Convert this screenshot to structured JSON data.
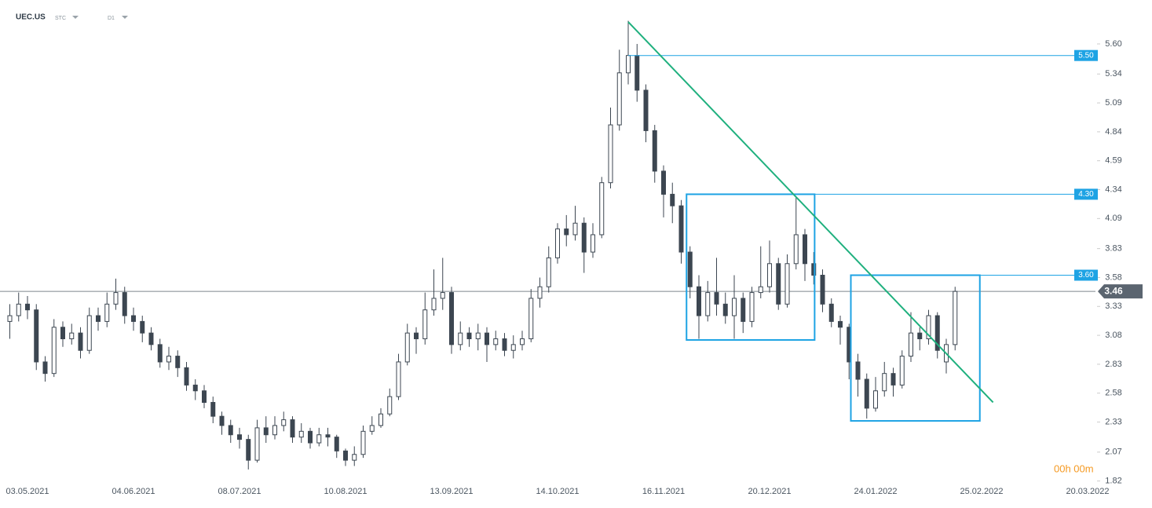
{
  "chart_data": {
    "type": "candlestick",
    "symbol": "UEC.US",
    "source": "STC",
    "interval": "D1",
    "timer": "00h 00m",
    "categories": [
      null,
      null,
      "03.05.2021",
      null,
      null,
      null,
      null,
      null,
      null,
      null,
      null,
      null,
      null,
      null,
      "04.06.2021",
      null,
      null,
      null,
      null,
      null,
      null,
      null,
      null,
      null,
      null,
      null,
      "08.07.2021",
      null,
      null,
      null,
      null,
      null,
      null,
      null,
      null,
      null,
      null,
      null,
      "10.08.2021",
      null,
      null,
      null,
      null,
      null,
      null,
      null,
      null,
      null,
      null,
      null,
      "13.09.2021",
      null,
      null,
      null,
      null,
      null,
      null,
      null,
      null,
      null,
      null,
      null,
      "14.10.2021",
      null,
      null,
      null,
      null,
      null,
      null,
      null,
      null,
      null,
      null,
      null,
      "16.11.2021",
      null,
      null,
      null,
      null,
      null,
      null,
      null,
      null,
      null,
      null,
      null,
      "20.12.2021",
      null,
      null,
      null,
      null,
      null,
      null,
      null,
      null,
      null,
      null,
      null,
      "24.01.2022",
      null,
      null,
      null,
      null,
      null,
      null,
      null,
      null,
      null,
      null,
      null,
      "25.02.2022",
      null,
      null,
      null,
      null,
      null,
      null,
      null,
      null,
      null,
      null,
      null,
      "20.03.2022"
    ],
    "open": [
      3.2,
      3.25,
      3.35,
      3.3,
      2.85,
      2.75,
      3.15,
      3.05,
      3.1,
      2.95,
      3.25,
      3.2,
      3.35,
      3.45,
      3.25,
      3.2,
      3.1,
      3.0,
      2.85,
      2.9,
      2.8,
      2.65,
      2.6,
      2.5,
      2.38,
      2.3,
      2.22,
      2.18,
      2.0,
      2.28,
      2.22,
      2.3,
      2.35,
      2.2,
      2.25,
      2.15,
      2.22,
      2.2,
      2.08,
      2.0,
      2.05,
      2.25,
      2.3,
      2.4,
      2.55,
      2.85,
      3.1,
      3.05,
      3.3,
      3.4,
      3.45,
      3.0,
      3.1,
      3.05,
      3.1,
      3.0,
      3.05,
      2.95,
      3.0,
      3.05,
      3.4,
      3.5,
      3.75,
      4.0,
      3.95,
      4.05,
      3.8,
      3.95,
      4.4,
      4.9,
      5.35,
      5.5,
      5.2,
      4.85,
      4.5,
      4.3,
      4.2,
      3.8,
      3.5,
      3.25,
      3.45,
      3.35,
      3.25,
      3.4,
      3.2,
      3.45,
      3.5,
      3.7,
      3.35,
      3.7,
      3.95,
      3.7,
      3.6,
      3.35,
      3.2,
      3.15,
      2.85,
      2.7,
      2.45,
      2.6,
      2.75,
      2.65,
      2.9,
      3.1,
      3.05,
      3.25,
      2.85,
      3.0,
      null,
      null,
      null,
      null,
      null,
      null,
      null,
      null,
      null,
      null,
      null,
      null,
      null,
      null,
      null
    ],
    "high": [
      3.35,
      3.45,
      3.42,
      3.35,
      2.9,
      3.22,
      3.2,
      3.18,
      3.15,
      3.32,
      3.32,
      3.45,
      3.57,
      3.5,
      3.32,
      3.25,
      3.15,
      3.05,
      2.98,
      2.95,
      2.85,
      2.7,
      2.65,
      2.55,
      2.42,
      2.35,
      2.28,
      2.22,
      2.35,
      2.38,
      2.38,
      2.42,
      2.38,
      2.32,
      2.28,
      2.28,
      2.28,
      2.22,
      2.1,
      2.12,
      2.3,
      2.38,
      2.45,
      2.62,
      2.92,
      3.18,
      3.15,
      3.45,
      3.65,
      3.75,
      3.5,
      3.2,
      3.15,
      3.18,
      3.15,
      3.12,
      3.1,
      3.08,
      3.12,
      3.48,
      3.58,
      3.85,
      4.05,
      4.12,
      4.2,
      4.1,
      4.05,
      4.45,
      5.05,
      5.55,
      5.8,
      5.6,
      5.25,
      4.9,
      4.55,
      4.4,
      4.25,
      3.85,
      3.6,
      3.55,
      3.75,
      3.45,
      3.6,
      3.45,
      3.5,
      3.85,
      3.9,
      3.75,
      3.78,
      4.28,
      4.0,
      3.8,
      3.65,
      3.4,
      3.25,
      3.18,
      2.92,
      2.75,
      2.72,
      2.85,
      2.8,
      2.95,
      3.28,
      3.15,
      3.3,
      3.28,
      3.05,
      3.5,
      null,
      null,
      null,
      null,
      null,
      null,
      null,
      null,
      null,
      null,
      null,
      null,
      null,
      null,
      null
    ],
    "low": [
      3.05,
      3.2,
      3.22,
      2.78,
      2.68,
      2.72,
      2.98,
      3.0,
      2.88,
      2.92,
      3.12,
      3.15,
      3.3,
      3.18,
      3.12,
      3.02,
      2.95,
      2.8,
      2.78,
      2.72,
      2.6,
      2.52,
      2.45,
      2.32,
      2.22,
      2.15,
      2.1,
      1.92,
      1.98,
      2.15,
      2.18,
      2.25,
      2.15,
      2.15,
      2.1,
      2.12,
      2.12,
      2.02,
      1.95,
      1.95,
      2.02,
      2.22,
      2.28,
      2.38,
      2.52,
      2.82,
      2.92,
      3.0,
      3.25,
      3.3,
      2.92,
      2.95,
      2.98,
      2.95,
      2.85,
      2.95,
      2.9,
      2.88,
      2.95,
      3.02,
      3.32,
      3.45,
      3.7,
      3.85,
      3.9,
      3.62,
      3.75,
      3.92,
      4.35,
      4.85,
      5.25,
      5.1,
      4.75,
      4.4,
      4.1,
      4.05,
      3.7,
      3.4,
      3.05,
      3.2,
      3.25,
      3.18,
      3.05,
      3.1,
      3.15,
      3.4,
      3.45,
      3.3,
      3.32,
      3.65,
      3.55,
      3.52,
      3.28,
      3.15,
      3.0,
      2.7,
      2.55,
      2.36,
      2.42,
      2.55,
      2.55,
      2.62,
      2.85,
      2.95,
      3.0,
      2.88,
      2.75,
      2.95,
      null,
      null,
      null,
      null,
      null,
      null,
      null,
      null,
      null,
      null,
      null,
      null,
      null,
      null,
      null
    ],
    "close": [
      3.25,
      3.35,
      3.3,
      2.85,
      2.75,
      3.15,
      3.05,
      3.1,
      2.95,
      3.25,
      3.2,
      3.35,
      3.45,
      3.25,
      3.2,
      3.1,
      3.0,
      2.85,
      2.9,
      2.8,
      2.65,
      2.6,
      2.5,
      2.38,
      2.3,
      2.22,
      2.18,
      2.0,
      2.28,
      2.22,
      2.3,
      2.35,
      2.2,
      2.25,
      2.15,
      2.22,
      2.2,
      2.08,
      2.0,
      2.05,
      2.25,
      2.3,
      2.4,
      2.55,
      2.85,
      3.1,
      3.05,
      3.3,
      3.4,
      3.45,
      3.0,
      3.1,
      3.05,
      3.1,
      3.0,
      3.05,
      2.95,
      3.0,
      3.05,
      3.4,
      3.5,
      3.75,
      4.0,
      3.95,
      4.05,
      3.8,
      3.95,
      4.4,
      4.9,
      5.35,
      5.5,
      5.2,
      4.85,
      4.5,
      4.3,
      4.2,
      3.8,
      3.5,
      3.25,
      3.45,
      3.35,
      3.25,
      3.4,
      3.2,
      3.45,
      3.5,
      3.7,
      3.35,
      3.7,
      3.95,
      3.7,
      3.6,
      3.35,
      3.2,
      3.15,
      2.85,
      2.7,
      2.45,
      2.6,
      2.75,
      2.65,
      2.9,
      3.1,
      3.05,
      3.25,
      2.95,
      3.0,
      3.46,
      null,
      null,
      null,
      null,
      null,
      null,
      null,
      null,
      null,
      null,
      null,
      null,
      null,
      null,
      null
    ],
    "up_color": "#ffffff",
    "down_color": "#3c4651",
    "outline_color": "#3c4651",
    "ylim": [
      1.77,
      5.98
    ],
    "yticks": [
      {
        "value": 5.6,
        "label": "5.60"
      },
      {
        "value": 5.34,
        "label": "5.34"
      },
      {
        "value": 5.09,
        "label": "5.09"
      },
      {
        "value": 4.84,
        "label": "4.84"
      },
      {
        "value": 4.59,
        "label": "4.59"
      },
      {
        "value": 4.34,
        "label": "4.34"
      },
      {
        "value": 4.09,
        "label": "4.09"
      },
      {
        "value": 3.83,
        "label": "3.83"
      },
      {
        "value": 3.58,
        "label": "3.58"
      },
      {
        "value": 3.33,
        "label": "3.33"
      },
      {
        "value": 3.08,
        "label": "3.08"
      },
      {
        "value": 2.83,
        "label": "2.83"
      },
      {
        "value": 2.58,
        "label": "2.58"
      },
      {
        "value": 2.33,
        "label": "2.33"
      },
      {
        "value": 2.07,
        "label": "2.07"
      },
      {
        "value": 1.82,
        "label": "1.82"
      }
    ],
    "last_price": {
      "value": 3.46,
      "label": "3.46"
    },
    "levels": [
      {
        "value": 5.5,
        "label": "5.50",
        "from": 70
      },
      {
        "value": 4.3,
        "label": "4.30",
        "from": 91.1
      },
      {
        "value": 3.6,
        "label": "3.60",
        "from": 109.8
      }
    ],
    "level_color": "#1ea3e4",
    "boxes": [
      {
        "x": [
          76.6,
          91.1
        ],
        "y": [
          3.04,
          4.3
        ]
      },
      {
        "x": [
          95.2,
          109.8
        ],
        "y": [
          2.34,
          3.6
        ]
      }
    ],
    "trendline": {
      "x": [
        70,
        111.3
      ],
      "y": [
        5.79,
        2.5
      ],
      "color": "#1fb07e"
    }
  }
}
